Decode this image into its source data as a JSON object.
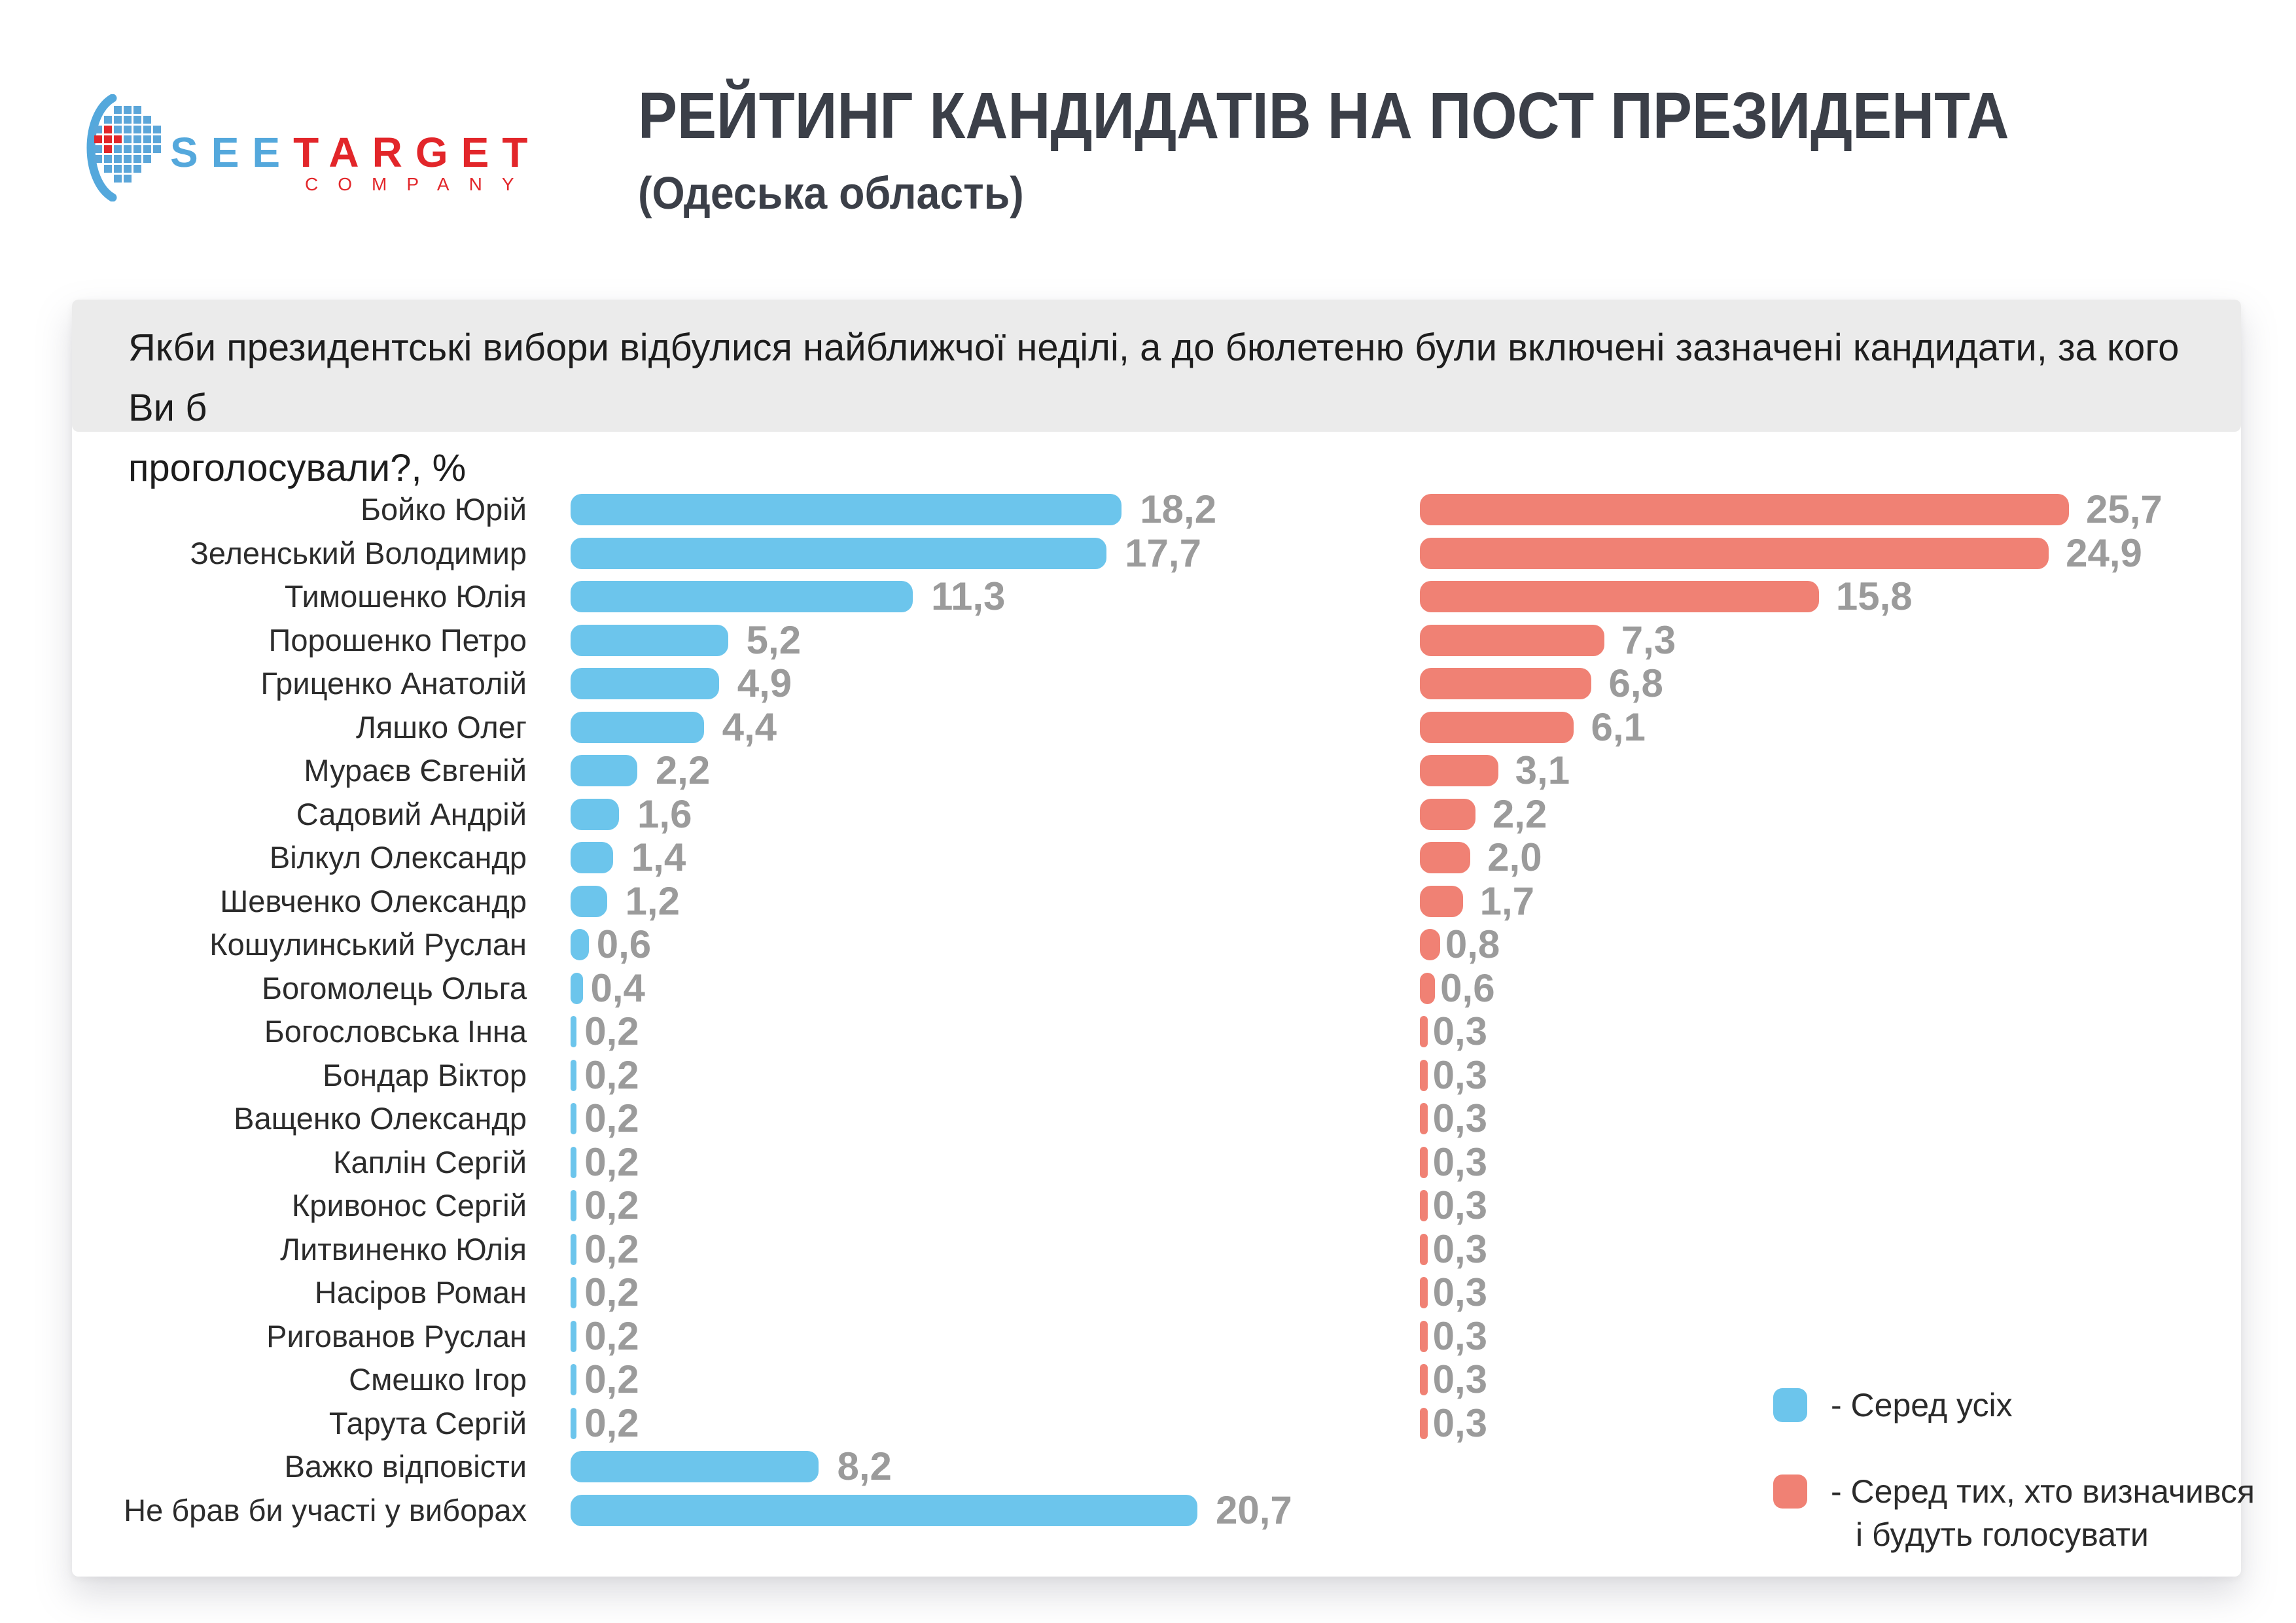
{
  "logo": {
    "brand_see": "SEE",
    "brand_target": "TARGET",
    "brand_sub": "COMPANY"
  },
  "header": {
    "title": "РЕЙТИНГ КАНДИДАТІВ НА ПОСТ ПРЕЗИДЕНТА",
    "subtitle": "(Одеська область)"
  },
  "question": {
    "line1": "Якби президентські вибори відбулися найближчої неділі, а до бюлетеню були включені зазначені кандидати, за кого Ви б",
    "line2": "проголосували?, %"
  },
  "legend": {
    "all_label": "- Серед усіх",
    "decided_label_line1": "- Серед тих, хто визначився",
    "decided_label_line2": "і будуть голосувати"
  },
  "colors": {
    "blue": "#6cc5ec",
    "red": "#f08174",
    "value_text": "#9b9b9b",
    "title_text": "#3b3f48",
    "band_bg": "#ebebeb"
  },
  "chart_data": {
    "type": "bar",
    "orientation": "horizontal",
    "title": "РЕЙТИНГ КАНДИДАТІВ НА ПОСТ ПРЕЗИДЕНТА (Одеська область)",
    "xlabel": "%",
    "grid": false,
    "legend_position": "bottom-right",
    "series": [
      {
        "name": "Серед усіх",
        "color": "#6cc5ec",
        "xlim": [
          0,
          20.7
        ]
      },
      {
        "name": "Серед тих, хто визначився і будуть голосувати",
        "color": "#f08174",
        "xlim": [
          0,
          25.7
        ]
      }
    ],
    "categories": [
      "Бойко Юрій",
      "Зеленський Володимир",
      "Тимошенко Юлія",
      "Порошенко Петро",
      "Гриценко Анатолій",
      "Ляшко Олег",
      "Мураєв Євгеній",
      "Садовий Андрій",
      "Вілкул Олександр",
      "Шевченко Олександр",
      "Кошулинський Руслан",
      "Богомолець Ольга",
      "Богословська Інна",
      "Бондар Віктор",
      "Ващенко Олександр",
      "Каплін Сергій",
      "Кривонос Сергій",
      "Литвиненко Юлія",
      "Насіров Роман",
      "Ригованов Руслан",
      "Смешко Ігор",
      "Тарута Сергій",
      "Важко відповісти",
      "Не брав би участі у виборах"
    ],
    "values_all": [
      18.2,
      17.7,
      11.3,
      5.2,
      4.9,
      4.4,
      2.2,
      1.6,
      1.4,
      1.2,
      0.6,
      0.4,
      0.2,
      0.2,
      0.2,
      0.2,
      0.2,
      0.2,
      0.2,
      0.2,
      0.2,
      0.2,
      8.2,
      20.7
    ],
    "labels_all": [
      "18,2",
      "17,7",
      "11,3",
      "5,2",
      "4,9",
      "4,4",
      "2,2",
      "1,6",
      "1,4",
      "1,2",
      "0,6",
      "0,4",
      "0,2",
      "0,2",
      "0,2",
      "0,2",
      "0,2",
      "0,2",
      "0,2",
      "0,2",
      "0,2",
      "0,2",
      "8,2",
      "20,7"
    ],
    "values_decided": [
      25.7,
      24.9,
      15.8,
      7.3,
      6.8,
      6.1,
      3.1,
      2.2,
      2.0,
      1.7,
      0.8,
      0.6,
      0.3,
      0.3,
      0.3,
      0.3,
      0.3,
      0.3,
      0.3,
      0.3,
      0.3,
      0.3,
      null,
      null
    ],
    "labels_decided": [
      "25,7",
      "24,9",
      "15,8",
      "7,3",
      "6,8",
      "6,1",
      "3,1",
      "2,2",
      "2,0",
      "1,7",
      "0,8",
      "0,6",
      "0,3",
      "0,3",
      "0,3",
      "0,3",
      "0,3",
      "0,3",
      "0,3",
      "0,3",
      "0,3",
      "0,3",
      "",
      ""
    ]
  }
}
